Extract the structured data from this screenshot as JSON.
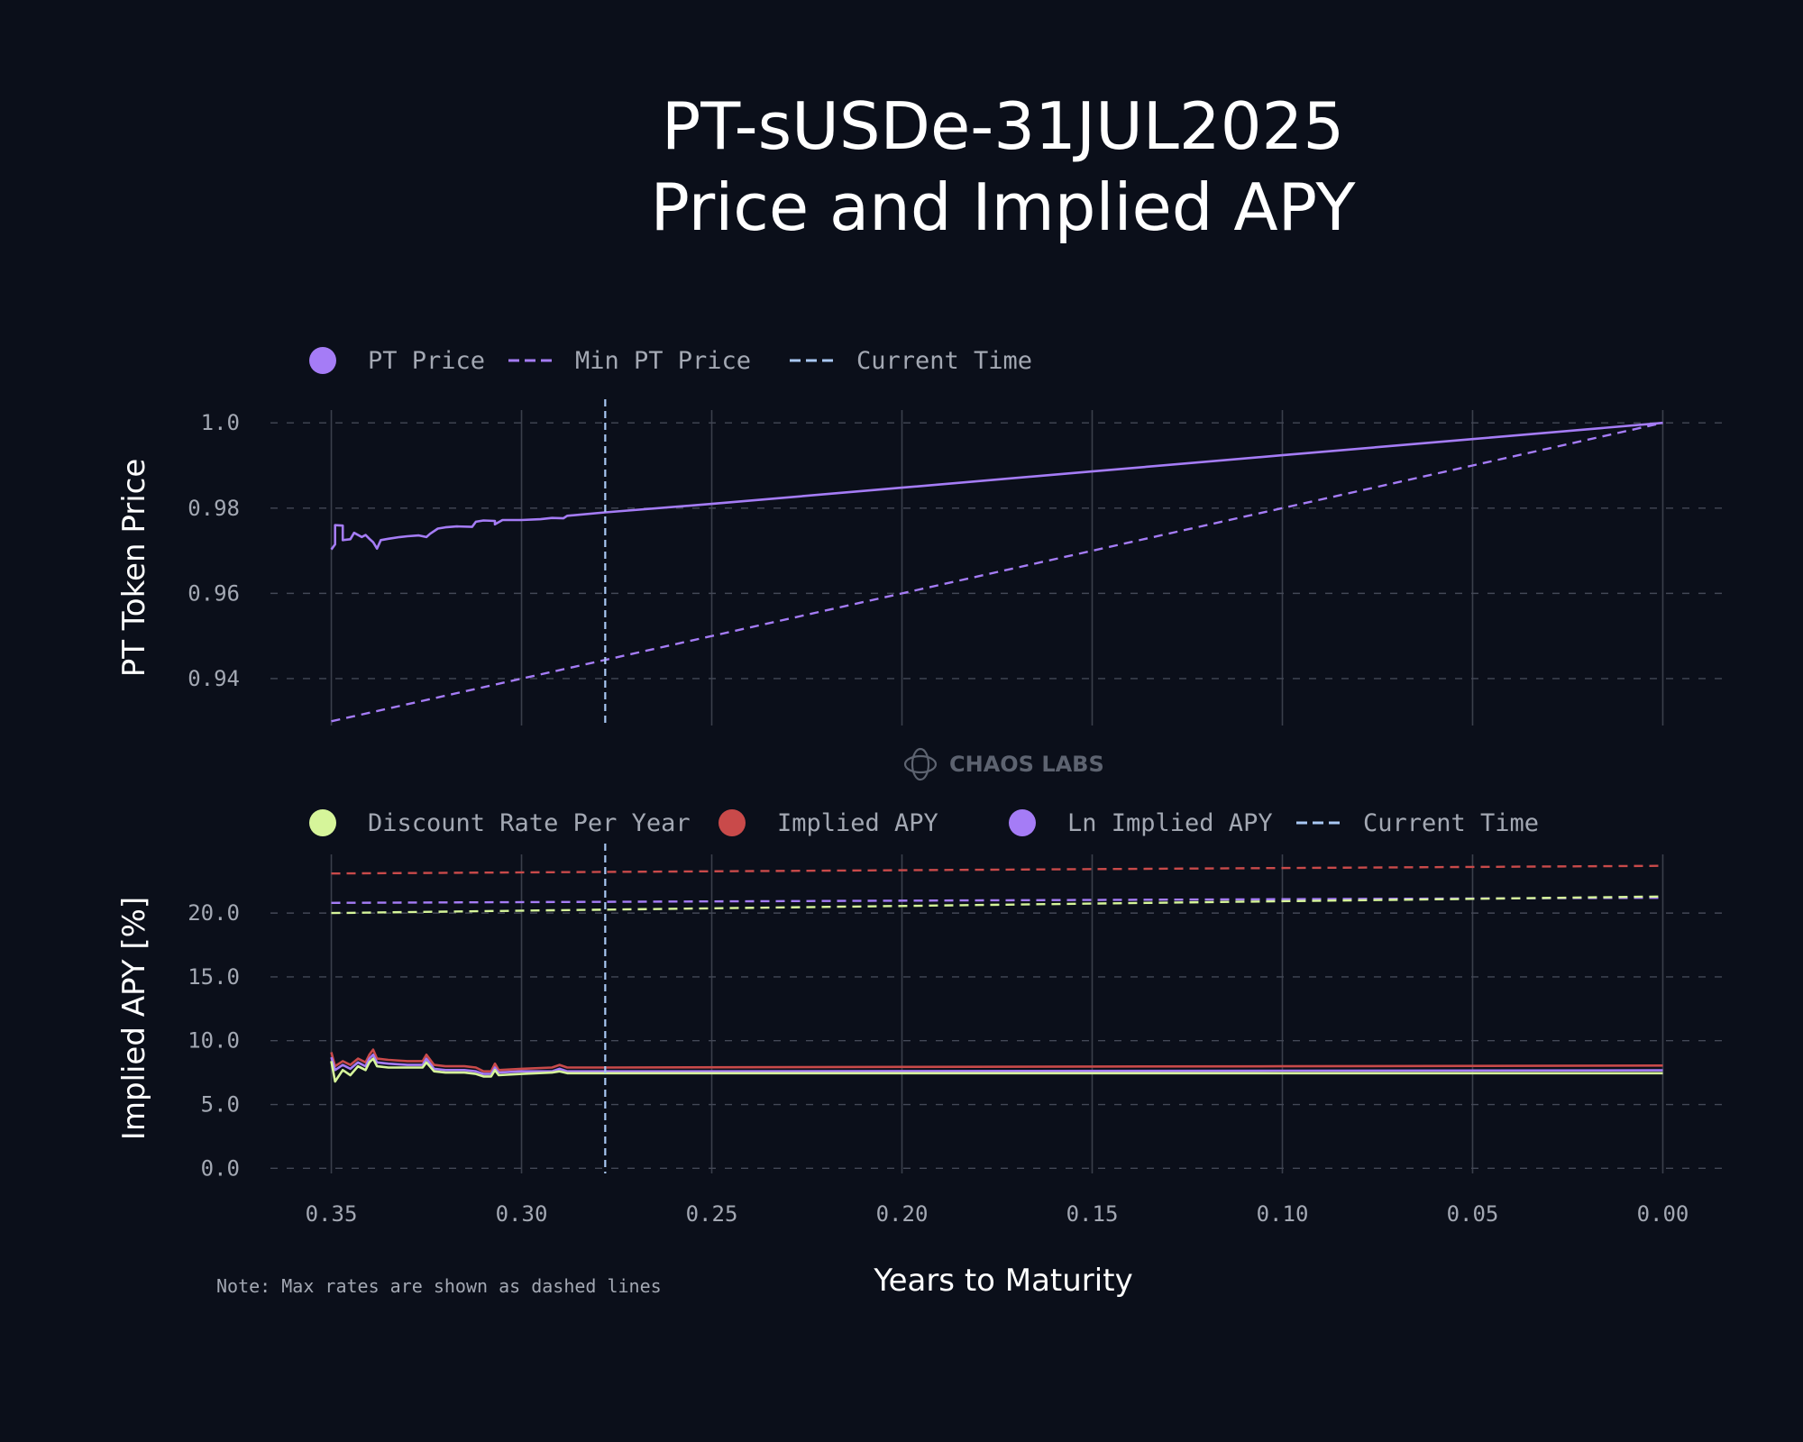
{
  "title": {
    "line1": "PT-sUSDe-31JUL2025",
    "line2": "Price and Implied APY"
  },
  "watermark": "CHAOS LABS",
  "note": "Note: Max rates are shown as dashed lines",
  "colors": {
    "background": "#0b0f1a",
    "pt_price": "#a57cf6",
    "current_time": "#a9c8f5",
    "discount_rate": "#d6f59a",
    "implied_apy": "#c94a4a",
    "ln_implied_apy": "#a57cf6"
  },
  "chart_data": [
    {
      "type": "line",
      "ylabel": "PT Token Price",
      "xlabel": "",
      "x_reversed": true,
      "xlim": [
        0.366,
        -0.016
      ],
      "ylim": [
        0.929,
        1.003
      ],
      "yticks": [
        0.94,
        0.96,
        0.98,
        1.0
      ],
      "ytick_labels": [
        "0.94",
        "0.96",
        "0.98",
        "1.0"
      ],
      "xticks": [
        0.35,
        0.3,
        0.25,
        0.2,
        0.15,
        0.1,
        0.05,
        0.0
      ],
      "grid": true,
      "legend": [
        {
          "label": "PT Price",
          "style": "dot",
          "color": "#a57cf6"
        },
        {
          "label": "Min PT Price",
          "style": "dashed",
          "color": "#a57cf6"
        },
        {
          "label": "Current Time",
          "style": "dashed",
          "color": "#a9c8f5"
        }
      ],
      "current_time_x": 0.278,
      "series": [
        {
          "name": "PT Price",
          "style": "solid",
          "color": "#a57cf6",
          "points": [
            [
              0.35,
              0.9703
            ],
            [
              0.349,
              0.9715
            ],
            [
              0.349,
              0.976
            ],
            [
              0.347,
              0.9759
            ],
            [
              0.347,
              0.9725
            ],
            [
              0.345,
              0.9727
            ],
            [
              0.344,
              0.9742
            ],
            [
              0.342,
              0.9732
            ],
            [
              0.341,
              0.9737
            ],
            [
              0.34,
              0.9728
            ],
            [
              0.339,
              0.972
            ],
            [
              0.338,
              0.9705
            ],
            [
              0.337,
              0.9725
            ],
            [
              0.335,
              0.9728
            ],
            [
              0.332,
              0.9732
            ],
            [
              0.33,
              0.9734
            ],
            [
              0.327,
              0.9736
            ],
            [
              0.325,
              0.9732
            ],
            [
              0.324,
              0.974
            ],
            [
              0.322,
              0.9752
            ],
            [
              0.32,
              0.9755
            ],
            [
              0.317,
              0.9757
            ],
            [
              0.313,
              0.9756
            ],
            [
              0.312,
              0.9768
            ],
            [
              0.31,
              0.9771
            ],
            [
              0.307,
              0.977
            ],
            [
              0.307,
              0.9762
            ],
            [
              0.305,
              0.9772
            ],
            [
              0.3,
              0.9772
            ],
            [
              0.295,
              0.9774
            ],
            [
              0.292,
              0.9777
            ],
            [
              0.289,
              0.9776
            ],
            [
              0.288,
              0.9782
            ],
            [
              0.278,
              0.979
            ],
            [
              0.25,
              0.981
            ],
            [
              0.2,
              0.9848
            ],
            [
              0.15,
              0.9886
            ],
            [
              0.1,
              0.9924
            ],
            [
              0.05,
              0.9962
            ],
            [
              0.0,
              1.0
            ]
          ]
        },
        {
          "name": "Min PT Price",
          "style": "dashed",
          "color": "#a57cf6",
          "points": [
            [
              0.35,
              0.93
            ],
            [
              0.0,
              1.0
            ]
          ]
        }
      ]
    },
    {
      "type": "line",
      "ylabel": "Implied APY [%]",
      "xlabel": "Years to Maturity",
      "x_reversed": true,
      "xlim": [
        0.366,
        -0.016
      ],
      "ylim": [
        -0.4,
        24.6
      ],
      "yticks": [
        0.0,
        5.0,
        10.0,
        15.0,
        20.0
      ],
      "ytick_labels": [
        "0.0",
        "5.0",
        "10.0",
        "15.0",
        "20.0"
      ],
      "xticks": [
        0.35,
        0.3,
        0.25,
        0.2,
        0.15,
        0.1,
        0.05,
        0.0
      ],
      "xtick_labels": [
        "0.35",
        "0.30",
        "0.25",
        "0.20",
        "0.15",
        "0.10",
        "0.05",
        "0.00"
      ],
      "grid": true,
      "legend": [
        {
          "label": "Discount Rate Per Year",
          "style": "dot",
          "color": "#d6f59a"
        },
        {
          "label": "Implied APY",
          "style": "dot",
          "color": "#c94a4a"
        },
        {
          "label": "Ln Implied APY",
          "style": "dot",
          "color": "#a57cf6"
        },
        {
          "label": "Current Time",
          "style": "dashed",
          "color": "#a9c8f5"
        }
      ],
      "current_time_x": 0.278,
      "series": [
        {
          "name": "Implied APY",
          "style": "solid",
          "color": "#c94a4a",
          "points": [
            [
              0.35,
              9.1
            ],
            [
              0.349,
              8.0
            ],
            [
              0.347,
              8.4
            ],
            [
              0.345,
              8.1
            ],
            [
              0.343,
              8.6
            ],
            [
              0.341,
              8.3
            ],
            [
              0.34,
              8.9
            ],
            [
              0.339,
              9.3
            ],
            [
              0.338,
              8.6
            ],
            [
              0.335,
              8.5
            ],
            [
              0.33,
              8.4
            ],
            [
              0.326,
              8.4
            ],
            [
              0.325,
              8.9
            ],
            [
              0.323,
              8.1
            ],
            [
              0.32,
              8.0
            ],
            [
              0.315,
              8.0
            ],
            [
              0.312,
              7.9
            ],
            [
              0.31,
              7.6
            ],
            [
              0.308,
              7.6
            ],
            [
              0.307,
              8.2
            ],
            [
              0.306,
              7.7
            ],
            [
              0.3,
              7.8
            ],
            [
              0.292,
              7.9
            ],
            [
              0.29,
              8.1
            ],
            [
              0.288,
              7.9
            ],
            [
              0.278,
              7.9
            ],
            [
              0.2,
              7.95
            ],
            [
              0.1,
              8.0
            ],
            [
              0.0,
              8.05
            ]
          ]
        },
        {
          "name": "Ln Implied APY",
          "style": "solid",
          "color": "#a57cf6",
          "points": [
            [
              0.35,
              8.7
            ],
            [
              0.349,
              7.7
            ],
            [
              0.347,
              8.1
            ],
            [
              0.345,
              7.8
            ],
            [
              0.343,
              8.3
            ],
            [
              0.341,
              8.0
            ],
            [
              0.34,
              8.6
            ],
            [
              0.339,
              8.9
            ],
            [
              0.338,
              8.3
            ],
            [
              0.335,
              8.2
            ],
            [
              0.33,
              8.1
            ],
            [
              0.326,
              8.1
            ],
            [
              0.325,
              8.6
            ],
            [
              0.323,
              7.8
            ],
            [
              0.32,
              7.7
            ],
            [
              0.315,
              7.7
            ],
            [
              0.312,
              7.6
            ],
            [
              0.31,
              7.4
            ],
            [
              0.308,
              7.4
            ],
            [
              0.307,
              7.9
            ],
            [
              0.306,
              7.5
            ],
            [
              0.3,
              7.6
            ],
            [
              0.292,
              7.6
            ],
            [
              0.29,
              7.8
            ],
            [
              0.288,
              7.6
            ],
            [
              0.278,
              7.6
            ],
            [
              0.2,
              7.62
            ],
            [
              0.1,
              7.65
            ],
            [
              0.0,
              7.68
            ]
          ]
        },
        {
          "name": "Discount Rate Per Year",
          "style": "solid",
          "color": "#d6f59a",
          "points": [
            [
              0.35,
              8.4
            ],
            [
              0.349,
              6.8
            ],
            [
              0.347,
              7.7
            ],
            [
              0.345,
              7.3
            ],
            [
              0.343,
              8.0
            ],
            [
              0.341,
              7.7
            ],
            [
              0.34,
              8.3
            ],
            [
              0.339,
              8.6
            ],
            [
              0.338,
              8.0
            ],
            [
              0.335,
              7.9
            ],
            [
              0.33,
              7.9
            ],
            [
              0.326,
              7.9
            ],
            [
              0.325,
              8.3
            ],
            [
              0.323,
              7.6
            ],
            [
              0.32,
              7.5
            ],
            [
              0.315,
              7.5
            ],
            [
              0.312,
              7.4
            ],
            [
              0.31,
              7.2
            ],
            [
              0.308,
              7.2
            ],
            [
              0.307,
              7.7
            ],
            [
              0.306,
              7.3
            ],
            [
              0.3,
              7.4
            ],
            [
              0.292,
              7.5
            ],
            [
              0.29,
              7.6
            ],
            [
              0.288,
              7.45
            ],
            [
              0.278,
              7.45
            ],
            [
              0.2,
              7.45
            ],
            [
              0.1,
              7.45
            ],
            [
              0.0,
              7.45
            ]
          ]
        },
        {
          "name": "Max Implied APY",
          "style": "dashed",
          "color": "#c94a4a",
          "points": [
            [
              0.35,
              23.1
            ],
            [
              0.0,
              23.7
            ]
          ]
        },
        {
          "name": "Max Ln Implied APY",
          "style": "dashed",
          "color": "#a57cf6",
          "points": [
            [
              0.35,
              20.8
            ],
            [
              0.0,
              21.2
            ]
          ]
        },
        {
          "name": "Max Discount Rate Per Year",
          "style": "dashed",
          "color": "#d6f59a",
          "points": [
            [
              0.35,
              20.0
            ],
            [
              0.0,
              21.3
            ]
          ]
        }
      ]
    }
  ]
}
